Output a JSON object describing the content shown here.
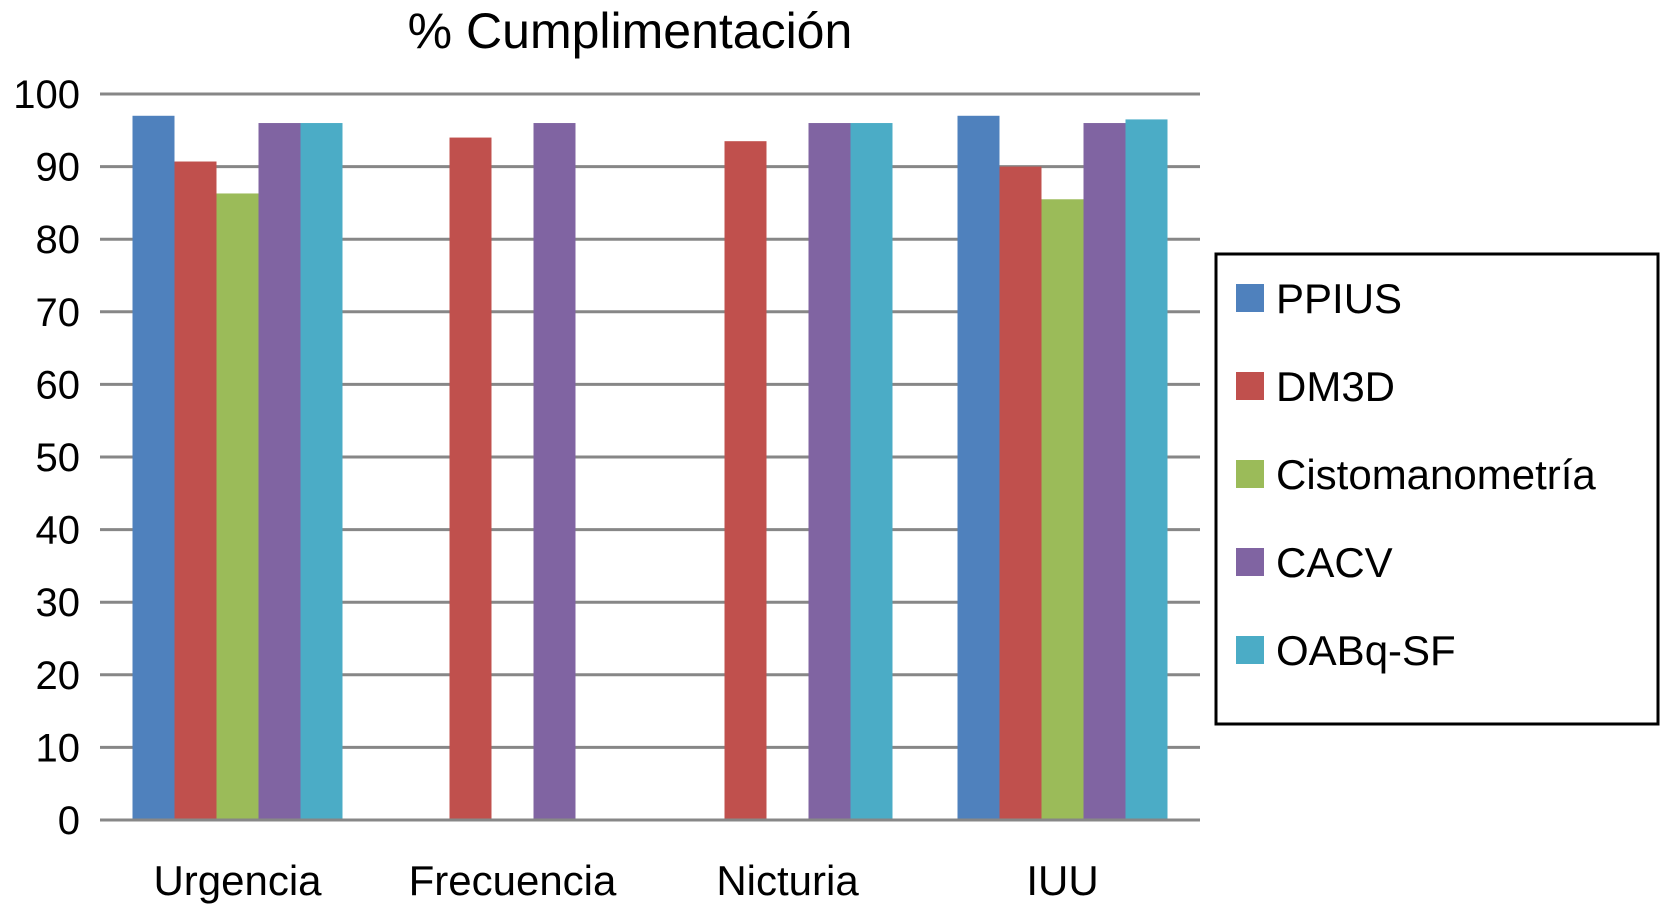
{
  "chart_data": {
    "type": "bar",
    "title": "% Cumplimentación",
    "xlabel": "",
    "ylabel": "",
    "ylim": [
      0,
      100
    ],
    "yticks": [
      0,
      10,
      20,
      30,
      40,
      50,
      60,
      70,
      80,
      90,
      100
    ],
    "grid": true,
    "legend_position": "right",
    "categories": [
      "Urgencia",
      "Frecuencia",
      "Nicturia",
      "IUU"
    ],
    "series": [
      {
        "name": "PPIUS",
        "color": "#4F81BD",
        "values": [
          97,
          null,
          null,
          97
        ]
      },
      {
        "name": "DM3D",
        "color": "#C0504D",
        "values": [
          90.7,
          94,
          93.5,
          90
        ]
      },
      {
        "name": "Cistomanometría",
        "color": "#9BBB59",
        "values": [
          86.3,
          null,
          null,
          85.5
        ]
      },
      {
        "name": "CACV",
        "color": "#8064A2",
        "values": [
          96,
          96,
          96,
          96
        ]
      },
      {
        "name": "OABq-SF",
        "color": "#4BACC6",
        "values": [
          96,
          null,
          96,
          96.5
        ]
      }
    ]
  }
}
